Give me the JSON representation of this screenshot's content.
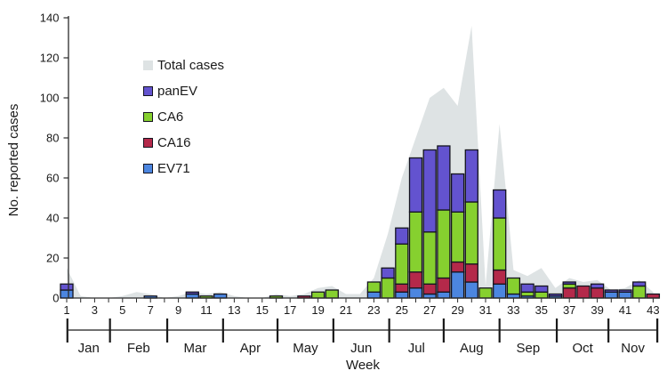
{
  "figure": {
    "y_axis_label": "No. reported cases",
    "x_axis_label": "Week"
  },
  "legend": {
    "items": [
      {
        "label": "Total cases",
        "color": "#dee3e4",
        "bordered": false
      },
      {
        "label": "panEV",
        "color": "#6353cf",
        "bordered": true
      },
      {
        "label": "CA6",
        "color": "#86d02f",
        "bordered": true
      },
      {
        "label": "CA16",
        "color": "#b4294a",
        "bordered": true
      },
      {
        "label": "EV71",
        "color": "#4c86e0",
        "bordered": true
      }
    ]
  },
  "chart_data": {
    "type": "stacked-bar+area",
    "title": "",
    "xlabel": "Week",
    "ylabel": "No. reported cases",
    "ylim": [
      0,
      140
    ],
    "y_ticks": [
      0,
      20,
      40,
      60,
      80,
      100,
      120,
      140
    ],
    "x_tick_labels": [
      1,
      3,
      5,
      7,
      9,
      11,
      13,
      15,
      17,
      19,
      21,
      23,
      25,
      27,
      29,
      31,
      33,
      35,
      37,
      39,
      41,
      43
    ],
    "weeks": [
      1,
      2,
      3,
      4,
      5,
      6,
      7,
      8,
      9,
      10,
      11,
      12,
      13,
      14,
      15,
      16,
      17,
      18,
      19,
      20,
      21,
      22,
      23,
      24,
      25,
      26,
      27,
      28,
      29,
      30,
      31,
      32,
      33,
      34,
      35,
      36,
      37,
      38,
      39,
      40,
      41,
      42,
      43
    ],
    "bar_border_color": "#14141f",
    "axis_color": "#2a2a2a",
    "series": [
      {
        "name": "EV71",
        "color": "#4c86e0",
        "values": [
          4,
          0,
          0,
          0,
          0,
          0,
          1,
          0,
          0,
          2,
          0,
          2,
          0,
          0,
          0,
          0,
          0,
          0,
          0,
          0,
          0,
          0,
          3,
          0,
          3,
          5,
          2,
          3,
          13,
          8,
          0,
          7,
          2,
          1,
          0,
          1,
          0,
          0,
          0,
          3,
          3,
          0,
          0
        ]
      },
      {
        "name": "CA16",
        "color": "#b4294a",
        "values": [
          0,
          0,
          0,
          0,
          0,
          0,
          0,
          0,
          0,
          0,
          0,
          0,
          0,
          0,
          0,
          0,
          0,
          1,
          0,
          0,
          0,
          0,
          0,
          0,
          4,
          8,
          5,
          7,
          5,
          9,
          0,
          7,
          0,
          0,
          0,
          0,
          5,
          6,
          5,
          0,
          0,
          0,
          2
        ]
      },
      {
        "name": "CA6",
        "color": "#86d02f",
        "values": [
          0,
          0,
          0,
          0,
          0,
          0,
          0,
          0,
          0,
          0,
          1,
          0,
          0,
          0,
          0,
          1,
          0,
          0,
          3,
          4,
          0,
          0,
          5,
          10,
          20,
          30,
          26,
          34,
          25,
          31,
          5,
          26,
          8,
          2,
          3,
          0,
          2,
          0,
          0,
          0,
          0,
          6,
          0
        ]
      },
      {
        "name": "panEV",
        "color": "#6353cf",
        "values": [
          3,
          0,
          0,
          0,
          0,
          0,
          0,
          0,
          0,
          1,
          0,
          0,
          0,
          0,
          0,
          0,
          0,
          0,
          0,
          0,
          0,
          0,
          0,
          5,
          8,
          27,
          41,
          32,
          19,
          26,
          0,
          14,
          0,
          4,
          3,
          1,
          1,
          0,
          2,
          1,
          1,
          2,
          0
        ]
      }
    ],
    "total_series": {
      "name": "Total cases",
      "color": "#dee3e4",
      "values": [
        15,
        1,
        0,
        0,
        1,
        3,
        2,
        0,
        1,
        3,
        2,
        3,
        1,
        0,
        0,
        2,
        1,
        2,
        5,
        6,
        2,
        2,
        10,
        32,
        60,
        80,
        100,
        105,
        96,
        136,
        6,
        87,
        14,
        11,
        15,
        5,
        10,
        8,
        9,
        4,
        5,
        9,
        3
      ]
    },
    "months": [
      {
        "label": "Jan",
        "from": 1.05,
        "to": 4.1
      },
      {
        "label": "Feb",
        "from": 4.1,
        "to": 8.2
      },
      {
        "label": "Mar",
        "from": 8.2,
        "to": 12.2
      },
      {
        "label": "Apr",
        "from": 12.2,
        "to": 16.1
      },
      {
        "label": "May",
        "from": 16.1,
        "to": 20.1
      },
      {
        "label": "Jun",
        "from": 20.1,
        "to": 24.1
      },
      {
        "label": "Jul",
        "from": 24.1,
        "to": 28.0
      },
      {
        "label": "Aug",
        "from": 28.0,
        "to": 32.0
      },
      {
        "label": "Sep",
        "from": 32.0,
        "to": 36.1
      },
      {
        "label": "Oct",
        "from": 36.1,
        "to": 39.8
      },
      {
        "label": "Nov",
        "from": 39.8,
        "to": 43.3
      }
    ]
  }
}
